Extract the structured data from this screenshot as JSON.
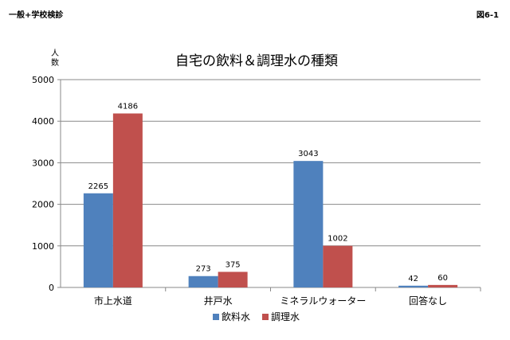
{
  "header": {
    "left_label": "一般+学校検診",
    "right_label": "図6-1"
  },
  "chart_data": {
    "type": "bar",
    "title": "自宅の飲料＆調理水の種類",
    "ylabel": "人数",
    "xlabel": "",
    "ylim": [
      0,
      5000
    ],
    "yticks": [
      0,
      1000,
      2000,
      3000,
      4000,
      5000
    ],
    "grid": true,
    "legend_position": "bottom",
    "categories": [
      "市上水道",
      "井戸水",
      "ミネラルウォーター",
      "回答なし"
    ],
    "series": [
      {
        "name": "飲料水",
        "color": "#4F81BD",
        "values": [
          2265,
          273,
          3043,
          42
        ]
      },
      {
        "name": "調理水",
        "color": "#C0504D",
        "values": [
          4186,
          375,
          1002,
          60
        ]
      }
    ]
  }
}
